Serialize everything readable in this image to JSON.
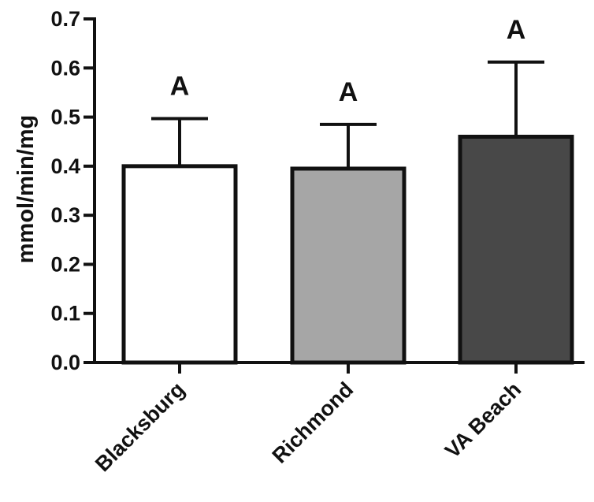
{
  "chart_data": {
    "type": "bar",
    "ylabel": "mmol/min/mg",
    "ylim": [
      0,
      0.7
    ],
    "yticks": [
      "0.0",
      "0.1",
      "0.2",
      "0.3",
      "0.4",
      "0.5",
      "0.6",
      "0.7"
    ],
    "categories": [
      "Blacksburg",
      "Richmond",
      "VA Beach"
    ],
    "values": [
      0.4,
      0.395,
      0.46
    ],
    "error_upper": [
      0.097,
      0.09,
      0.152
    ],
    "significance": [
      "A",
      "A",
      "A"
    ],
    "colors": [
      "#ffffff",
      "#a6a6a6",
      "#484848"
    ],
    "grid": false
  }
}
